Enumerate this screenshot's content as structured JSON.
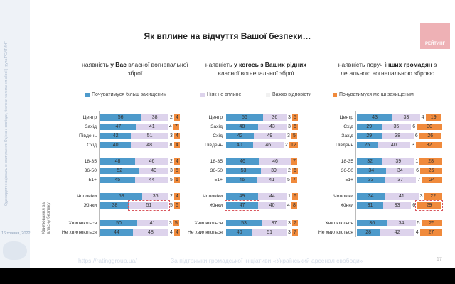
{
  "sidebar": {
    "side_text": "Одинадцяте національне опитування: Оцінка з свободи, безпеки та питання зброї | група РЕЙТИНГ",
    "date": "16 травня, 2022"
  },
  "title": "Як вплине на відчуття Вашої безпеки…",
  "logo": "РЕЙТИНГ",
  "subtitles": [
    {
      "pre": "наявність ",
      "bold": "у Вас",
      "post": " власної вогнепальної зброї"
    },
    {
      "pre": "наявність ",
      "bold": "у когось з Ваших рідних",
      "post": " власної вогнепальної зброї"
    },
    {
      "pre": "наявність поруч ",
      "bold": "інших громадян",
      "post": " з легальною вогнепальною зброєю"
    }
  ],
  "vertical_axis_label": "Хвилювання за власну безпеку",
  "footer": {
    "url": "https://ratinggroup.ua/",
    "support": "За підтримки  громадської ініціативи «Український арсенал свободи»",
    "page": "17"
  },
  "chart_data": {
    "type": "bar",
    "stacked": true,
    "orientation": "horizontal",
    "legend": [
      "Почуватимуся більш захищеним",
      "Ніяк не вплине",
      "Важко відповісти",
      "Почуватимуся менш захищеним"
    ],
    "colors": [
      "#4d9acb",
      "#ddd3ec",
      "#f3f3f3",
      "#f08a3c"
    ],
    "legend_position": "top",
    "charts": [
      {
        "categories": [
          "Центр",
          "Захід",
          "Південь",
          "Схід",
          "18-35",
          "36-50",
          "51+",
          "Чоловіки",
          "Жінки",
          "Хвилюються",
          "Не хвилюються"
        ],
        "values": [
          [
            56,
            38,
            2,
            4
          ],
          [
            47,
            41,
            4,
            7
          ],
          [
            42,
            51,
            3,
            4
          ],
          [
            40,
            48,
            8,
            4
          ],
          [
            48,
            46,
            2,
            4
          ],
          [
            52,
            40,
            3,
            5
          ],
          [
            45,
            44,
            5,
            6
          ],
          [
            58,
            36,
            2,
            4
          ],
          [
            38,
            51,
            5,
            6
          ],
          [
            50,
            41,
            3,
            5
          ],
          [
            44,
            48,
            4,
            4
          ]
        ],
        "highlight": {
          "row": 8,
          "series": 1
        }
      },
      {
        "categories": [
          "Центр",
          "Захід",
          "Схід",
          "Південь",
          "18-35",
          "36-50",
          "51+",
          "Чоловіки",
          "Жінки",
          "Хвилюються",
          "Не хвилюються"
        ],
        "values": [
          [
            56,
            36,
            3,
            5
          ],
          [
            48,
            43,
            3,
            6
          ],
          [
            42,
            49,
            3,
            5
          ],
          [
            40,
            46,
            2,
            12
          ],
          [
            46,
            46,
            null,
            7
          ],
          [
            53,
            39,
            2,
            6
          ],
          [
            46,
            41,
            5,
            7
          ],
          [
            49,
            44,
            1,
            6
          ],
          [
            47,
            40,
            4,
            8
          ],
          [
            53,
            37,
            3,
            7
          ],
          [
            40,
            51,
            3,
            7
          ]
        ],
        "highlight": {
          "row": 8,
          "series": 0
        }
      },
      {
        "categories": [
          "Центр",
          "Схід",
          "Захід",
          "Південь",
          "18-35",
          "36-50",
          "51+",
          "Чоловіки",
          "Жінки",
          "Хвилюються",
          "Не хвилюються"
        ],
        "values": [
          [
            43,
            33,
            4,
            19
          ],
          [
            29,
            35,
            6,
            30
          ],
          [
            29,
            38,
            6,
            26
          ],
          [
            25,
            40,
            3,
            32
          ],
          [
            32,
            39,
            1,
            28
          ],
          [
            34,
            34,
            6,
            26
          ],
          [
            33,
            37,
            7,
            24
          ],
          [
            34,
            41,
            3,
            22
          ],
          [
            31,
            33,
            6,
            29
          ],
          [
            36,
            34,
            5,
            25
          ],
          [
            28,
            42,
            4,
            27
          ]
        ],
        "highlight": {
          "row": 8,
          "series": 3
        }
      }
    ]
  }
}
